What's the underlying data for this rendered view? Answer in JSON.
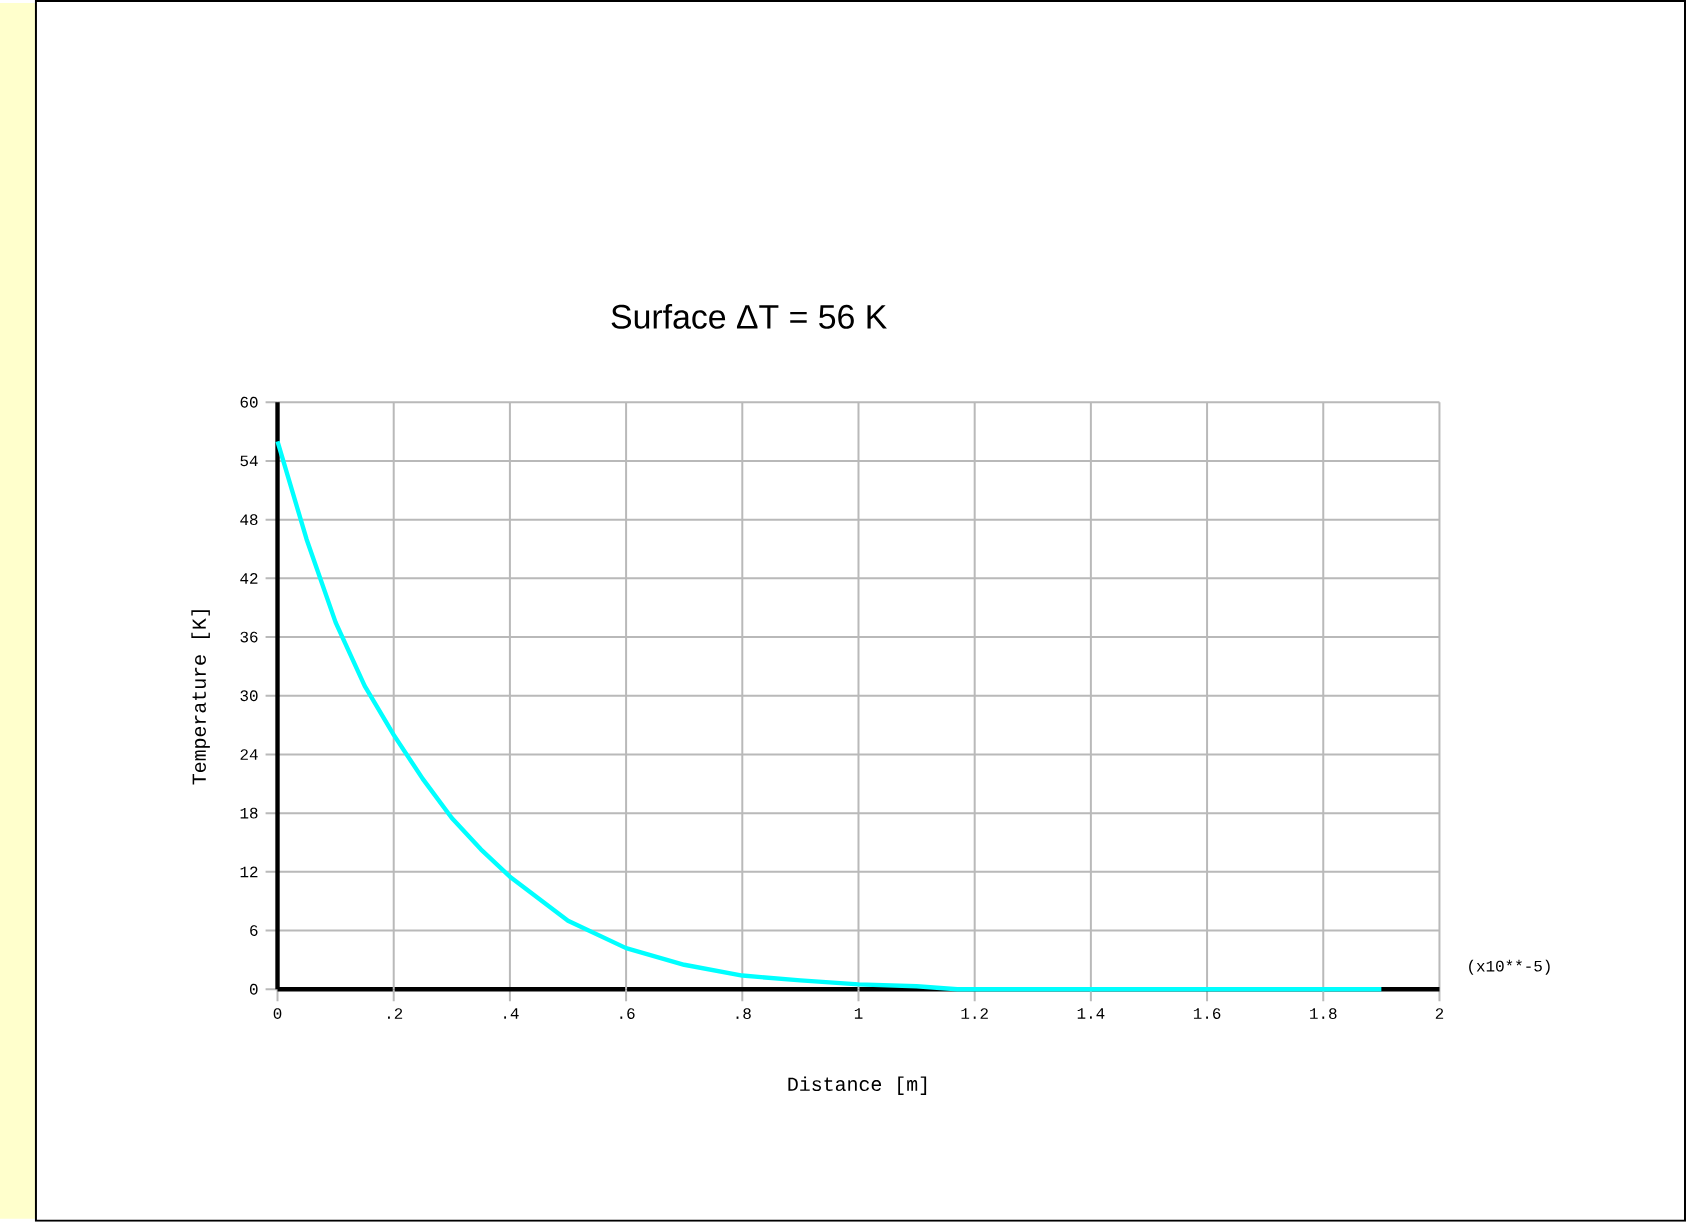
{
  "chart_data": {
    "type": "line",
    "xlabel": "Distance [m]",
    "ylabel": "Temperature [K]",
    "annotations": [
      "Surface ΔT = 56 K",
      "(x10**-5)"
    ],
    "series": [
      {
        "color": "#00ffff",
        "x": [
          0,
          0.05,
          0.1,
          0.15,
          0.2,
          0.25,
          0.3,
          0.35,
          0.4,
          0.5,
          0.6,
          0.7,
          0.8,
          0.9,
          1.0,
          1.1,
          1.17,
          1.9
        ],
        "values": [
          56,
          46,
          37.5,
          31,
          26,
          21.5,
          17.5,
          14.3,
          11.5,
          7,
          4.2,
          2.5,
          1.4,
          0.9,
          0.5,
          0.3,
          0,
          0
        ]
      }
    ],
    "xlim": [
      0,
      2
    ],
    "ylim": [
      0,
      60
    ],
    "xticks": [
      0,
      {
        "value": 0.2,
        "label": ".2"
      },
      {
        "value": 0.4,
        "label": ".4"
      },
      {
        "value": 0.6,
        "label": ".6"
      },
      {
        "value": 0.8,
        "label": ".8"
      },
      1,
      1.2,
      1.4,
      1.6,
      1.8,
      2
    ],
    "yticks": [
      0,
      6,
      12,
      18,
      24,
      30,
      36,
      42,
      48,
      54,
      60
    ],
    "grid": true,
    "marker": "none",
    "line_style": "solid"
  }
}
